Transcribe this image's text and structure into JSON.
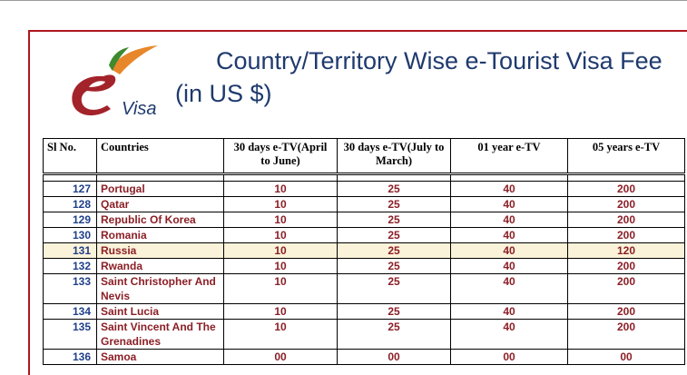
{
  "logo_text": "Visa",
  "title_line1": "Country/Territory Wise e-Tourist Visa Fee",
  "title_line2": "(in US $)",
  "columns": {
    "sl": "Sl No.",
    "country": "Countries",
    "c1": "30 days e-TV(April to June)",
    "c2": "30 days e-TV(July to March)",
    "c3": "01 year e-TV",
    "c4": "05 years e-TV"
  },
  "rows": [
    {
      "sl": "127",
      "country": "Portugal",
      "c1": "10",
      "c2": "25",
      "c3": "40",
      "c4": "200"
    },
    {
      "sl": "128",
      "country": "Qatar",
      "c1": "10",
      "c2": "25",
      "c3": "40",
      "c4": "200"
    },
    {
      "sl": "129",
      "country": "Republic Of Korea",
      "c1": "10",
      "c2": "25",
      "c3": "40",
      "c4": "200"
    },
    {
      "sl": "130",
      "country": "Romania",
      "c1": "10",
      "c2": "25",
      "c3": "40",
      "c4": "200"
    },
    {
      "sl": "131",
      "country": "Russia",
      "c1": "10",
      "c2": "25",
      "c3": "40",
      "c4": "120"
    },
    {
      "sl": "132",
      "country": "Rwanda",
      "c1": "10",
      "c2": "25",
      "c3": "40",
      "c4": "200"
    },
    {
      "sl": "133",
      "country": "Saint Christopher And Nevis",
      "c1": "10",
      "c2": "25",
      "c3": "40",
      "c4": "200"
    },
    {
      "sl": "134",
      "country": "Saint Lucia",
      "c1": "10",
      "c2": "25",
      "c3": "40",
      "c4": "200"
    },
    {
      "sl": "135",
      "country": "Saint Vincent And The Grenadines",
      "c1": "10",
      "c2": "25",
      "c3": "40",
      "c4": "200"
    },
    {
      "sl": "136",
      "country": "Samoa",
      "c1": "00",
      "c2": "00",
      "c3": "00",
      "c4": "00"
    }
  ],
  "colors": {
    "frame": "#b0161e",
    "title": "#1f3a6e",
    "sl": "#1f3f8a",
    "text": "#8b1f26",
    "highlight": "#fbf3d9"
  }
}
